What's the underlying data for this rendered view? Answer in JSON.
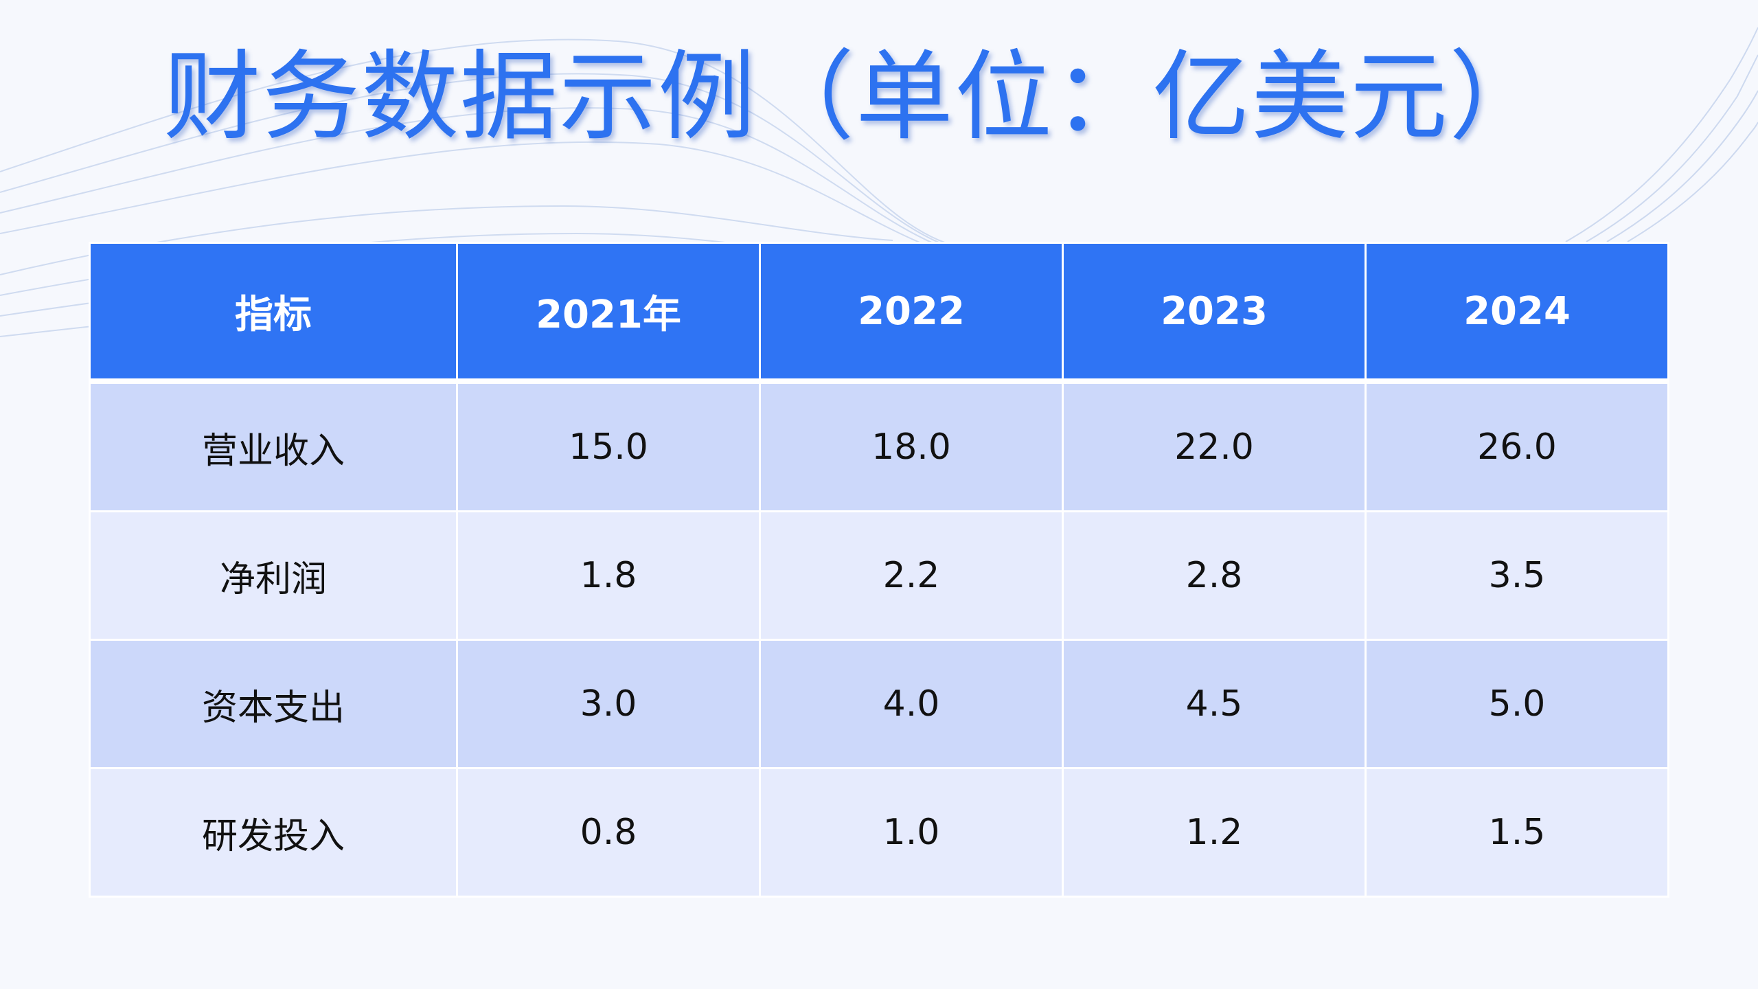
{
  "slide": {
    "title": "财务数据示例（单位：亿美元）"
  },
  "table": {
    "headers": [
      "指标",
      "2021年",
      "2022",
      "2023",
      "2024"
    ],
    "rows": [
      {
        "label": "营业收入",
        "values": [
          "15.0",
          "18.0",
          "22.0",
          "26.0"
        ]
      },
      {
        "label": "净利润",
        "values": [
          "1.8",
          "2.2",
          "2.8",
          "3.5"
        ]
      },
      {
        "label": "资本支出",
        "values": [
          "3.0",
          "4.0",
          "4.5",
          "5.0"
        ]
      },
      {
        "label": "研发投入",
        "values": [
          "0.8",
          "1.0",
          "1.2",
          "1.5"
        ]
      }
    ]
  },
  "colors": {
    "background": "#f6f8fd",
    "title": "#2d72f0",
    "header_bg": "#2f74f4",
    "row_odd": "#ccd8fa",
    "row_even": "#e6ebfd",
    "decor_lines": "#c9d6ee"
  }
}
